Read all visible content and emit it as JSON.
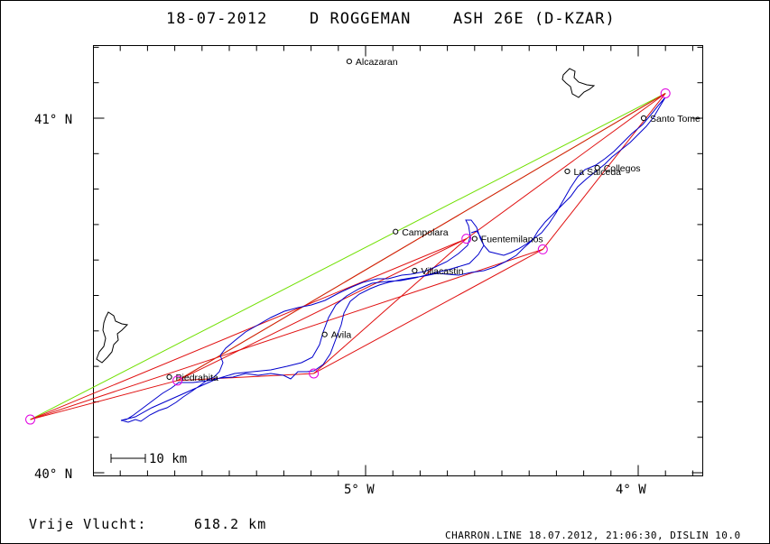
{
  "title": {
    "date": "18-07-2012",
    "pilot": "D ROGGEMAN",
    "glider": "ASH 26E (D-KZAR)"
  },
  "axes": {
    "lat_labels": [
      {
        "value": 41,
        "text": "41° N"
      },
      {
        "value": 40,
        "text": "40° N"
      }
    ],
    "lon_labels": [
      {
        "value": -5,
        "text": "5° W"
      },
      {
        "value": -4,
        "text": "4° W"
      }
    ]
  },
  "towns": [
    {
      "name": "Alcazaran",
      "lon": -5.06,
      "lat": 41.16
    },
    {
      "name": "Santo Tome",
      "lon": -3.98,
      "lat": 41.0
    },
    {
      "name": "Collegos",
      "lon": -4.15,
      "lat": 40.86
    },
    {
      "name": "La Salceda",
      "lon": -4.26,
      "lat": 40.85
    },
    {
      "name": "Campolara",
      "lon": -4.89,
      "lat": 40.68
    },
    {
      "name": "Fuentemilanos",
      "lon": -4.6,
      "lat": 40.66
    },
    {
      "name": "Villacastin",
      "lon": -4.82,
      "lat": 40.57
    },
    {
      "name": "Avila",
      "lon": -5.15,
      "lat": 40.39
    },
    {
      "name": "Piedrahita",
      "lon": -5.72,
      "lat": 40.27
    }
  ],
  "turnpoints": [
    {
      "lon": -6.23,
      "lat": 40.15
    },
    {
      "lon": -5.69,
      "lat": 40.26
    },
    {
      "lon": -5.19,
      "lat": 40.28
    },
    {
      "lon": -4.63,
      "lat": 40.66
    },
    {
      "lon": -4.35,
      "lat": 40.63
    },
    {
      "lon": -3.9,
      "lat": 41.07
    }
  ],
  "scale_bar": "10 km",
  "distance": {
    "label": "Vrije Vlucht:",
    "value": "618.2 km"
  },
  "footer": "CHARRON.LINE 18.07.2012, 21:06:30, DISLIN 10.0",
  "colors": {
    "track": "#0000cc",
    "task_lines": "#e01010",
    "free_lines": "#70e000",
    "turnpoint": "#e000e0",
    "axis": "#000000"
  }
}
